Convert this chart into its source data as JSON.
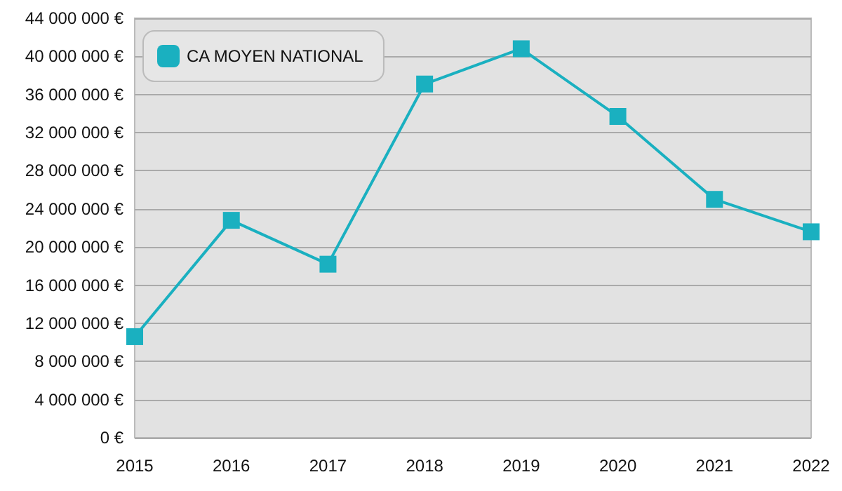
{
  "chart_data": {
    "type": "line",
    "categories": [
      "2015",
      "2016",
      "2017",
      "2018",
      "2019",
      "2020",
      "2021",
      "2022"
    ],
    "series": [
      {
        "name": "CA MOYEN NATIONAL",
        "color": "#1ab0c0",
        "values": [
          10600000,
          22800000,
          18200000,
          37100000,
          40800000,
          33700000,
          25000000,
          21600000
        ]
      }
    ],
    "ylim": [
      0,
      44000000
    ],
    "yticks": [
      {
        "value": 0,
        "label": "0 €"
      },
      {
        "value": 4000000,
        "label": "4 000 000 €"
      },
      {
        "value": 8000000,
        "label": "8 000 000 €"
      },
      {
        "value": 12000000,
        "label": "12 000 000 €"
      },
      {
        "value": 16000000,
        "label": "16 000 000 €"
      },
      {
        "value": 20000000,
        "label": "20 000 000 €"
      },
      {
        "value": 24000000,
        "label": "24 000 000 €"
      },
      {
        "value": 28000000,
        "label": "28 000 000 €"
      },
      {
        "value": 32000000,
        "label": "32 000 000 €"
      },
      {
        "value": 36000000,
        "label": "36 000 000 €"
      },
      {
        "value": 40000000,
        "label": "40 000 000 €"
      },
      {
        "value": 44000000,
        "label": "44 000 000 €"
      }
    ],
    "grid": "y",
    "legend": "top left",
    "marker": "square",
    "line_style": "solid"
  }
}
